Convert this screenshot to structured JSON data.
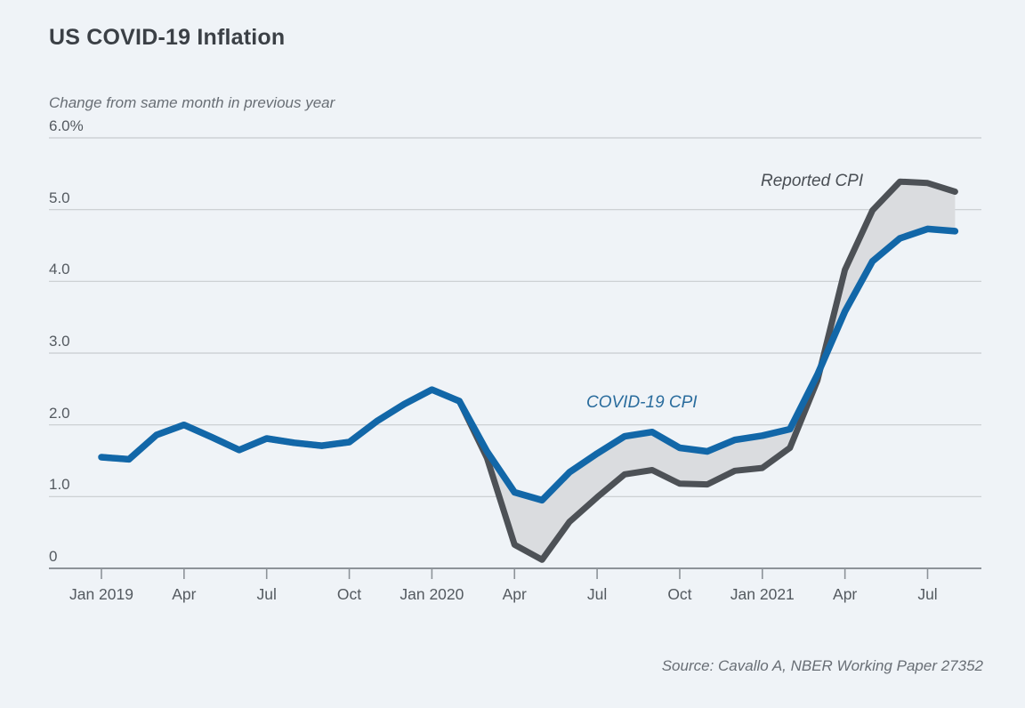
{
  "page": {
    "title": "US COVID-19 Inflation",
    "subtitle": "Change from same month in previous year",
    "source": "Source: Cavallo A, NBER Working Paper 27352"
  },
  "colors": {
    "background": "#eff3f7",
    "covid_line": "#1267a8",
    "reported_line": "#4d5156",
    "band_fill": "#dadcdf",
    "gridline": "#c8cccf",
    "axis_line": "#8d9399",
    "title_text": "#3b4046",
    "muted_text": "#686e75",
    "tick_text": "#545a60",
    "covid_label_text": "#2a6c9d",
    "reported_label_text": "#4a4f55"
  },
  "chart_data": {
    "type": "line",
    "title": "US COVID-19 Inflation",
    "subtitle": "Change from same month in previous year",
    "source": "Source: Cavallo A, NBER Working Paper 27352",
    "ylabel": "Change from same month in previous year (%)",
    "ylim": [
      0,
      6
    ],
    "grid": true,
    "legend": "inline-annotations",
    "months": [
      "Jan 2019",
      "Feb 2019",
      "Mar 2019",
      "Apr 2019",
      "May 2019",
      "Jun 2019",
      "Jul 2019",
      "Aug 2019",
      "Sep 2019",
      "Oct 2019",
      "Nov 2019",
      "Dec 2019",
      "Jan 2020",
      "Feb 2020",
      "Mar 2020",
      "Apr 2020",
      "May 2020",
      "Jun 2020",
      "Jul 2020",
      "Aug 2020",
      "Sep 2020",
      "Oct 2020",
      "Nov 2020",
      "Dec 2020",
      "Jan 2021",
      "Feb 2021",
      "Mar 2021",
      "Apr 2021",
      "May 2021",
      "Jun 2021",
      "Jul 2021",
      "Aug 2021"
    ],
    "series": [
      {
        "name": "Reported CPI",
        "color": "#4d5156",
        "values": [
          1.55,
          1.52,
          1.86,
          2.0,
          1.83,
          1.65,
          1.81,
          1.75,
          1.71,
          1.76,
          2.05,
          2.29,
          2.49,
          2.33,
          1.54,
          0.33,
          0.12,
          0.65,
          0.99,
          1.31,
          1.37,
          1.18,
          1.17,
          1.36,
          1.4,
          1.68,
          2.62,
          4.16,
          4.99,
          5.39,
          5.37,
          5.25
        ]
      },
      {
        "name": "COVID-19 CPI",
        "color": "#1267a8",
        "values": [
          1.55,
          1.52,
          1.86,
          2.0,
          1.83,
          1.65,
          1.81,
          1.75,
          1.71,
          1.76,
          2.05,
          2.29,
          2.49,
          2.33,
          1.63,
          1.06,
          0.95,
          1.34,
          1.6,
          1.84,
          1.9,
          1.68,
          1.63,
          1.79,
          1.85,
          1.94,
          2.7,
          3.58,
          4.28,
          4.6,
          4.73,
          4.7
        ]
      }
    ],
    "y_ticks": [
      {
        "label": "6.0%",
        "value": 6
      },
      {
        "label": "5.0",
        "value": 5
      },
      {
        "label": "4.0",
        "value": 4
      },
      {
        "label": "3.0",
        "value": 3
      },
      {
        "label": "2.0",
        "value": 2
      },
      {
        "label": "1.0",
        "value": 1
      },
      {
        "label": "0",
        "value": 0
      }
    ],
    "x_ticks": [
      {
        "label": "Jan 2019",
        "month": 0
      },
      {
        "label": "Apr",
        "month": 3
      },
      {
        "label": "Jul",
        "month": 6
      },
      {
        "label": "Oct",
        "month": 9
      },
      {
        "label": "Jan 2020",
        "month": 12
      },
      {
        "label": "Apr",
        "month": 15
      },
      {
        "label": "Jul",
        "month": 18
      },
      {
        "label": "Oct",
        "month": 21
      },
      {
        "label": "Jan 2021",
        "month": 24
      },
      {
        "label": "Apr",
        "month": 27
      },
      {
        "label": "Jul",
        "month": 30
      }
    ],
    "annotations": [
      {
        "text": "Reported CPI"
      },
      {
        "text": "COVID-19 CPI"
      }
    ]
  }
}
